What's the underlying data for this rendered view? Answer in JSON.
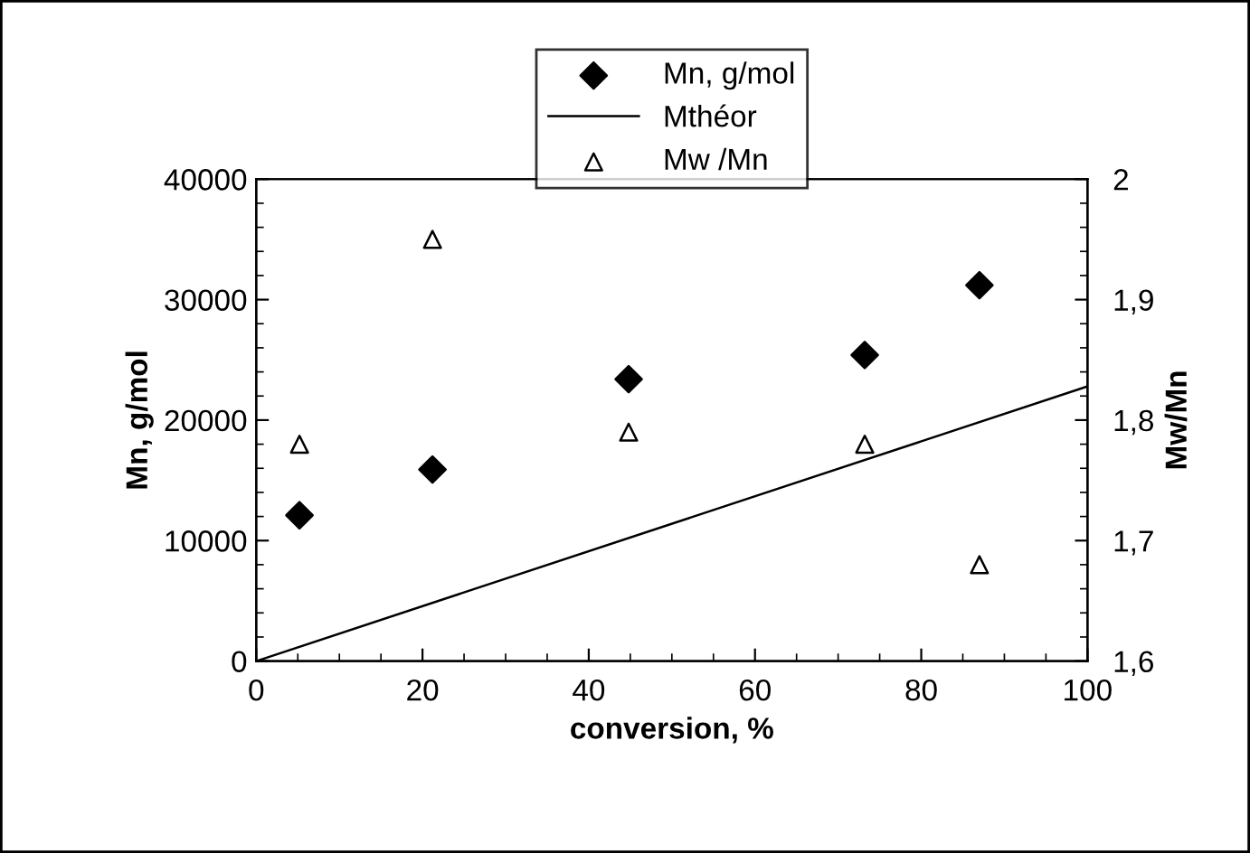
{
  "chart_data": {
    "type": "scatter",
    "xlabel": "conversion, %",
    "ylabel": "Mn, g/mol",
    "y2label": "Mw/Mn",
    "xlim": [
      0,
      100
    ],
    "xticks": [
      0,
      20,
      40,
      60,
      80,
      100
    ],
    "ylim": [
      0,
      40000
    ],
    "yticks": [
      0,
      10000,
      20000,
      30000,
      40000
    ],
    "y2lim": [
      1.6,
      2.0
    ],
    "y2ticks": [
      {
        "value": 1.6,
        "label": "1,6"
      },
      {
        "value": 1.7,
        "label": "1,7"
      },
      {
        "value": 1.8,
        "label": "1,8"
      },
      {
        "value": 1.9,
        "label": "1,9"
      },
      {
        "value": 2.0,
        "label": "2"
      }
    ],
    "grid": false,
    "legend": "top",
    "series": [
      {
        "name": "Mn, g/mol",
        "marker": "diamond",
        "color": "#000000",
        "x": [
          5.2,
          21.2,
          44.8,
          73.2,
          87
        ],
        "values": [
          12100,
          15900,
          23400,
          25400,
          31200
        ]
      },
      {
        "name": "Mthéor",
        "type": "line",
        "marker": "none",
        "line_style": "solid",
        "color": "#000000",
        "x": [
          0,
          100
        ],
        "values": [
          0,
          22800
        ]
      },
      {
        "name": "Mw /Mn",
        "marker": "triangle",
        "axis": "y2",
        "color": "#000000",
        "x": [
          5.2,
          21.2,
          44.8,
          73.2,
          87
        ],
        "values": [
          1.78,
          1.95,
          1.79,
          1.78,
          1.68
        ]
      }
    ]
  }
}
